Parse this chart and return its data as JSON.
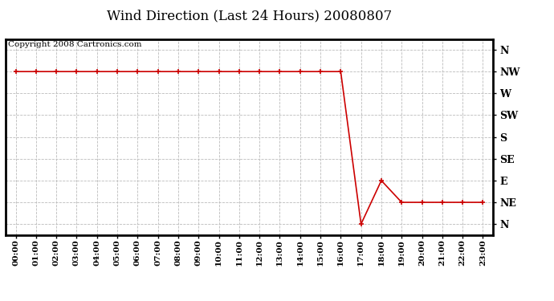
{
  "title": "Wind Direction (Last 24 Hours) 20080807",
  "copyright": "Copyright 2008 Cartronics.com",
  "background_color": "#ffffff",
  "line_color": "#cc0000",
  "grid_color": "#bbbbbb",
  "x_labels": [
    "00:00",
    "01:00",
    "02:00",
    "03:00",
    "04:00",
    "05:00",
    "06:00",
    "07:00",
    "08:00",
    "09:00",
    "10:00",
    "11:00",
    "12:00",
    "13:00",
    "14:00",
    "15:00",
    "16:00",
    "17:00",
    "18:00",
    "19:00",
    "20:00",
    "21:00",
    "22:00",
    "23:00"
  ],
  "y_ticks": [
    360,
    315,
    270,
    225,
    180,
    135,
    90,
    45,
    0
  ],
  "y_labels": [
    "N",
    "NW",
    "W",
    "SW",
    "S",
    "SE",
    "E",
    "NE",
    "N"
  ],
  "hours": [
    0,
    1,
    2,
    3,
    4,
    5,
    6,
    7,
    8,
    9,
    10,
    11,
    12,
    13,
    14,
    15,
    16,
    17,
    18,
    19,
    20,
    21,
    22,
    23
  ],
  "values": [
    315,
    315,
    315,
    315,
    315,
    315,
    315,
    315,
    315,
    315,
    315,
    315,
    315,
    315,
    315,
    315,
    315,
    0,
    90,
    45,
    45,
    45,
    45,
    45
  ],
  "ylim": [
    -22,
    382
  ],
  "xlim": [
    -0.5,
    23.5
  ],
  "title_fontsize": 12,
  "label_fontsize": 9,
  "copyright_fontsize": 7.5
}
